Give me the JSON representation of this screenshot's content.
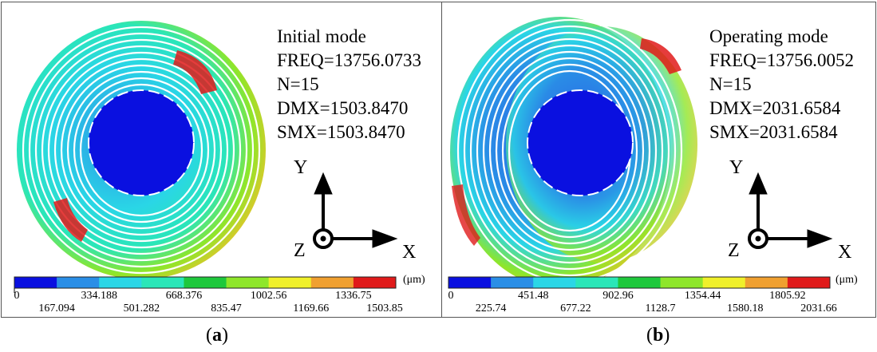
{
  "panels": [
    {
      "id": "a",
      "caption": "a",
      "mode": "Initial mode",
      "freq": "FREQ=13756.0733",
      "n": "N=15",
      "dmx": "DMX=1503.8470",
      "smx": "SMX=1503.8470",
      "unit": "(μm)",
      "ticks_top": [
        "0",
        "334.188",
        "668.376",
        "1002.56",
        "1336.75"
      ],
      "ticks_bottom": [
        "167.094",
        "501.282",
        "835.47",
        "1169.66",
        "1503.85"
      ]
    },
    {
      "id": "b",
      "caption": "b",
      "mode": "Operating mode",
      "freq": "FREQ=13756.0052",
      "n": "N=15",
      "dmx": "DMX=2031.6584",
      "smx": "SMX=2031.6584",
      "unit": "(μm)",
      "ticks_top": [
        "0",
        "451.48",
        "902.96",
        "1354.44",
        "1805.92"
      ],
      "ticks_bottom": [
        "225.74",
        "677.22",
        "1128.7",
        "1580.18",
        "2031.66"
      ]
    }
  ],
  "axes": {
    "x": "X",
    "y": "Y",
    "z": "Z"
  },
  "colormap": [
    "#0a10e0",
    "#2a8ee6",
    "#2ad6e6",
    "#2ae6b8",
    "#1ec83c",
    "#8ee62a",
    "#f0f02a",
    "#f0a030",
    "#e01a1a"
  ]
}
